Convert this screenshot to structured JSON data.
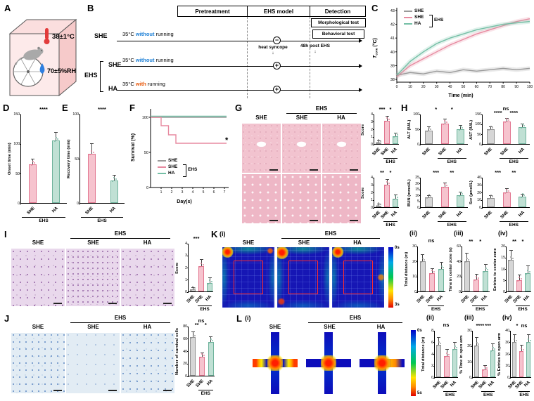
{
  "letters": {
    "A": "A",
    "B": "B",
    "C": "C",
    "D": "D",
    "E": "E",
    "F": "F",
    "G": "G",
    "H": "H",
    "I": "I",
    "J": "J",
    "K": "K",
    "L": "L"
  },
  "subs": {
    "i": "(i)",
    "ii": "(ii)",
    "iii": "(iii)",
    "iv": "(iv)"
  },
  "groups": {
    "she": "SHE",
    "ha": "HA",
    "ehs": "EHS"
  },
  "icons": {
    "down_arrow": "↓"
  },
  "panelA": {
    "temp": "38±1°C",
    "rh": "70±5%RH"
  },
  "panelB": {
    "headers": [
      "Pretreatment",
      "EHS model",
      "Detection"
    ],
    "rows": [
      {
        "group": "SHE",
        "t1": "35°C ",
        "kw": "without",
        "t2": " running",
        "sym": "−"
      },
      {
        "group": "SHE",
        "t1": "35°C ",
        "kw": "without",
        "t2": " running",
        "sym": "+"
      },
      {
        "group": "HA",
        "t1": "35°C ",
        "kw": "with",
        "t2": " running",
        "sym": "+"
      }
    ],
    "boxes": [
      "Morphological test",
      "Behavioral test"
    ],
    "heat_syncope": "heat syncope",
    "post": "48h post EHS"
  },
  "panelC": {
    "ylabel_t": "T",
    "ylabel_sub": "core",
    "ylabel_unit": " (°C)",
    "xlabel": "Time (min)"
  },
  "panelF": {
    "ylabel": "Survival (%)",
    "xlabel": "Day(s)",
    "sig": "*"
  },
  "scalebars": {
    "k0": "0s",
    "k3": "3s",
    "l0": "0s",
    "l5": "5s"
  },
  "palette": {
    "gray": {
      "fill": "#d6d6d6",
      "edge": "#8f8f8f"
    },
    "pink": {
      "fill": "#f6c3ce",
      "edge": "#e27690"
    },
    "green": {
      "fill": "#c0e0d4",
      "edge": "#6fb39c"
    },
    "she_line": "#9a9a9a",
    "ehs_line": "#e78aa0",
    "ha_line": "#74bfa6"
  },
  "chart_data": {
    "C": {
      "type": "line",
      "ylabel": "Tcore (°C)",
      "xlabel": "Time (min)",
      "xlim": [
        0,
        100
      ],
      "ylim": [
        37.8,
        43.2
      ],
      "xticks": [
        0,
        10,
        20,
        30,
        40,
        50,
        60,
        70,
        80,
        90,
        100
      ],
      "yticks": [
        38,
        39,
        40,
        41,
        42,
        43
      ],
      "x": [
        0,
        10,
        20,
        30,
        40,
        50,
        60,
        70,
        80,
        90,
        100
      ],
      "legend": [
        "SHE",
        "SHE",
        "HA"
      ],
      "legend_bracket": "EHS",
      "series": [
        {
          "name": "SHE",
          "color": "#9a9a9a",
          "band": true,
          "y": [
            38.3,
            38.5,
            38.4,
            38.6,
            38.5,
            38.7,
            38.6,
            38.7,
            38.8,
            38.7,
            38.8
          ]
        },
        {
          "name": "SHE (EHS)",
          "color": "#e78aa0",
          "band": true,
          "y": [
            38.2,
            39.0,
            39.5,
            40.0,
            40.5,
            40.9,
            41.3,
            41.6,
            41.9,
            42.2,
            42.4
          ]
        },
        {
          "name": "HA (EHS)",
          "color": "#74bfa6",
          "band": true,
          "y": [
            38.3,
            39.3,
            40.0,
            40.6,
            41.0,
            41.3,
            41.6,
            41.8,
            42.0,
            42.1,
            42.2
          ]
        }
      ]
    },
    "F": {
      "type": "line",
      "ylabel": "Survival (%)",
      "xlabel": "Day(s)",
      "xlim": [
        0,
        7.4
      ],
      "ylim": [
        0,
        112
      ],
      "xticks": [
        1,
        2,
        3,
        4,
        5,
        6,
        7
      ],
      "yticks": [
        0,
        50,
        100
      ],
      "sig": "*",
      "legend": [
        "SHE",
        "SHE",
        "HA"
      ],
      "legend_bracket": "EHS",
      "series": [
        {
          "name": "SHE",
          "color": "#9a9a9a",
          "x": [
            0,
            7.2
          ],
          "y": [
            100,
            100
          ]
        },
        {
          "name": "SHE (EHS)",
          "color": "#e78aa0",
          "x": [
            0,
            1,
            1,
            1.7,
            1.7,
            2.4,
            2.4,
            7.2
          ],
          "y": [
            100,
            100,
            88,
            88,
            75,
            75,
            63,
            63
          ]
        },
        {
          "name": "HA (EHS)",
          "color": "#74bfa6",
          "x": [
            0,
            7.2
          ],
          "y": [
            101.5,
            101.5
          ]
        }
      ]
    },
    "D": {
      "type": "bar",
      "ylabel": "Onset time (min)",
      "ylim": [
        0,
        150
      ],
      "yticks": [
        0,
        50,
        100,
        150
      ],
      "categories": [
        "SHE",
        "HA"
      ],
      "values": [
        65,
        105
      ],
      "errors": [
        8,
        13
      ],
      "colors": [
        "pink",
        "green"
      ],
      "sigA": "****",
      "ehs_from": 0
    },
    "E": {
      "type": "bar",
      "ylabel": "Recovery time (min)",
      "ylim": [
        0,
        100
      ],
      "yticks": [
        0,
        50,
        100
      ],
      "categories": [
        "SHE",
        "HA"
      ],
      "values": [
        55,
        25
      ],
      "errors": [
        11,
        6
      ],
      "colors": [
        "pink",
        "green"
      ],
      "sigA": "****",
      "ehs_from": 0
    },
    "G1": {
      "type": "bar",
      "ylabel": "Score",
      "ylim": [
        0,
        4
      ],
      "yticks": [
        0,
        1,
        2,
        3,
        4
      ],
      "categories": [
        "SHE",
        "SHE",
        "HA"
      ],
      "values": [
        0.2,
        3.1,
        1.0
      ],
      "errors": [
        0.2,
        0.5,
        0.4
      ],
      "colors": [
        "gray",
        "pink",
        "green"
      ],
      "sigA": "***",
      "sigB": "*",
      "ehs_from": 1
    },
    "G2": {
      "type": "bar",
      "ylabel": "Score",
      "ylim": [
        0,
        4
      ],
      "yticks": [
        0,
        1,
        2,
        3,
        4
      ],
      "categories": [
        "SHE",
        "SHE",
        "HA"
      ],
      "values": [
        0.2,
        3.0,
        1.1
      ],
      "errors": [
        0.2,
        0.6,
        0.5
      ],
      "colors": [
        "gray",
        "pink",
        "green"
      ],
      "sigA": "**",
      "sigB": "*",
      "ehs_from": 1
    },
    "H_ALT": {
      "type": "bar",
      "ylabel": "ALT (IU/L)",
      "ylim": [
        0,
        100
      ],
      "yticks": [
        0,
        50,
        100
      ],
      "categories": [
        "SHE",
        "SHE",
        "HA"
      ],
      "values": [
        45,
        68,
        50
      ],
      "errors": [
        10,
        13,
        10
      ],
      "colors": [
        "gray",
        "pink",
        "green"
      ],
      "sigA": "*",
      "sigB": "*",
      "ehs_from": 1
    },
    "H_AST": {
      "type": "bar",
      "ylabel": "AST (IU/L)",
      "ylim": [
        0,
        150
      ],
      "yticks": [
        0,
        50,
        100,
        150
      ],
      "categories": [
        "SHE",
        "SHE",
        "HA"
      ],
      "values": [
        75,
        112,
        85
      ],
      "errors": [
        10,
        15,
        12
      ],
      "colors": [
        "gray",
        "pink",
        "green"
      ],
      "sigTop": "ns",
      "sigA": "****",
      "sigB": "****",
      "ehs_from": 1
    },
    "H_BUN": {
      "type": "bar",
      "ylabel": "BUN (mmol/L)",
      "ylim": [
        0,
        25
      ],
      "yticks": [
        0,
        5,
        10,
        15,
        20,
        25
      ],
      "categories": [
        "SHE",
        "SHE",
        "HA"
      ],
      "values": [
        8,
        17,
        10
      ],
      "errors": [
        1.5,
        2.5,
        2
      ],
      "colors": [
        "gray",
        "pink",
        "green"
      ],
      "sigA": "***",
      "sigB": "**",
      "ehs_from": 1
    },
    "H_SCR": {
      "type": "bar",
      "ylabel": "Scr (μmol/L)",
      "ylim": [
        0,
        40
      ],
      "yticks": [
        0,
        10,
        20,
        30,
        40
      ],
      "categories": [
        "SHE",
        "SHE",
        "HA"
      ],
      "values": [
        12,
        20,
        14
      ],
      "errors": [
        3,
        4,
        3
      ],
      "colors": [
        "gray",
        "pink",
        "green"
      ],
      "sigA": "***",
      "sigB": "**",
      "ehs_from": 1
    },
    "I": {
      "type": "bar",
      "ylabel": "Score",
      "ylim": [
        0,
        4
      ],
      "yticks": [
        0,
        1,
        2,
        3,
        4
      ],
      "categories": [
        "SHE",
        "SHE",
        "HA"
      ],
      "values": [
        0.15,
        2.1,
        0.7
      ],
      "errors": [
        0.15,
        0.5,
        0.4
      ],
      "colors": [
        "gray",
        "pink",
        "green"
      ],
      "sigA": "***",
      "ehs_from": 1
    },
    "J": {
      "type": "bar",
      "ylabel": "Number of survival cells",
      "ylim": [
        0,
        80
      ],
      "yticks": [
        0,
        20,
        40,
        60,
        80
      ],
      "categories": [
        "SHE",
        "SHE",
        "HA"
      ],
      "values": [
        62,
        30,
        54
      ],
      "errors": [
        8,
        6,
        8
      ],
      "colors": [
        "gray",
        "pink",
        "green"
      ],
      "sigTop": "ns",
      "sigA": "**",
      "sigB": "*",
      "ehs_from": 1
    },
    "K2": {
      "type": "bar",
      "ylabel": "Total distance (m)",
      "ylim": [
        0,
        30
      ],
      "yticks": [
        0,
        10,
        20,
        30
      ],
      "categories": [
        "SHE",
        "SHE",
        "HA"
      ],
      "values": [
        20,
        12,
        15
      ],
      "errors": [
        4,
        3,
        4
      ],
      "colors": [
        "gray",
        "pink",
        "green"
      ],
      "sigTop": "ns",
      "ehs_from": 1
    },
    "K3": {
      "type": "bar",
      "ylabel": "Time in center zone (s)",
      "ylim": [
        0,
        60
      ],
      "yticks": [
        0,
        20,
        40,
        60
      ],
      "categories": [
        "SHE",
        "SHE",
        "HA"
      ],
      "values": [
        40,
        16,
        27
      ],
      "errors": [
        10,
        6,
        8
      ],
      "colors": [
        "gray",
        "pink",
        "green"
      ],
      "sigA": "**",
      "sigB": "*",
      "ehs_from": 1
    },
    "K4": {
      "type": "bar",
      "ylabel": "Entries to center zone",
      "ylim": [
        0,
        20
      ],
      "yticks": [
        0,
        5,
        10,
        15,
        20
      ],
      "categories": [
        "SHE",
        "SHE",
        "HA"
      ],
      "values": [
        14,
        5,
        8
      ],
      "errors": [
        4,
        2,
        3
      ],
      "colors": [
        "gray",
        "pink",
        "green"
      ],
      "sigA": "**",
      "sigB": "*",
      "ehs_from": 1
    },
    "L2": {
      "type": "bar",
      "ylabel": "Total distance (m)",
      "ylim": [
        0,
        8
      ],
      "yticks": [
        0,
        2,
        4,
        6,
        8
      ],
      "categories": [
        "SHE",
        "SHE",
        "HA"
      ],
      "values": [
        5.5,
        3.6,
        4.8
      ],
      "errors": [
        1.2,
        1,
        1
      ],
      "colors": [
        "gray",
        "pink",
        "green"
      ],
      "sigTop": "ns",
      "ehs_from": 1
    },
    "L3": {
      "type": "bar",
      "ylabel": "% Time in open arm",
      "ylim": [
        0,
        30
      ],
      "yticks": [
        0,
        10,
        20,
        30
      ],
      "categories": [
        "SHE",
        "SHE",
        "HA"
      ],
      "values": [
        20,
        5,
        17
      ],
      "errors": [
        5,
        2,
        4
      ],
      "colors": [
        "gray",
        "pink",
        "green"
      ],
      "sigA": "****",
      "sigB": "***",
      "ehs_from": 1
    },
    "L4": {
      "type": "bar",
      "ylabel": "% Entries to open arm",
      "ylim": [
        0,
        40
      ],
      "yticks": [
        0,
        10,
        20,
        30,
        40
      ],
      "categories": [
        "SHE",
        "SHE",
        "HA"
      ],
      "values": [
        30,
        22,
        30
      ],
      "errors": [
        6,
        5,
        6
      ],
      "colors": [
        "gray",
        "pink",
        "green"
      ],
      "sigA": "*",
      "sigB": "ns",
      "ehs_from": 1
    }
  }
}
